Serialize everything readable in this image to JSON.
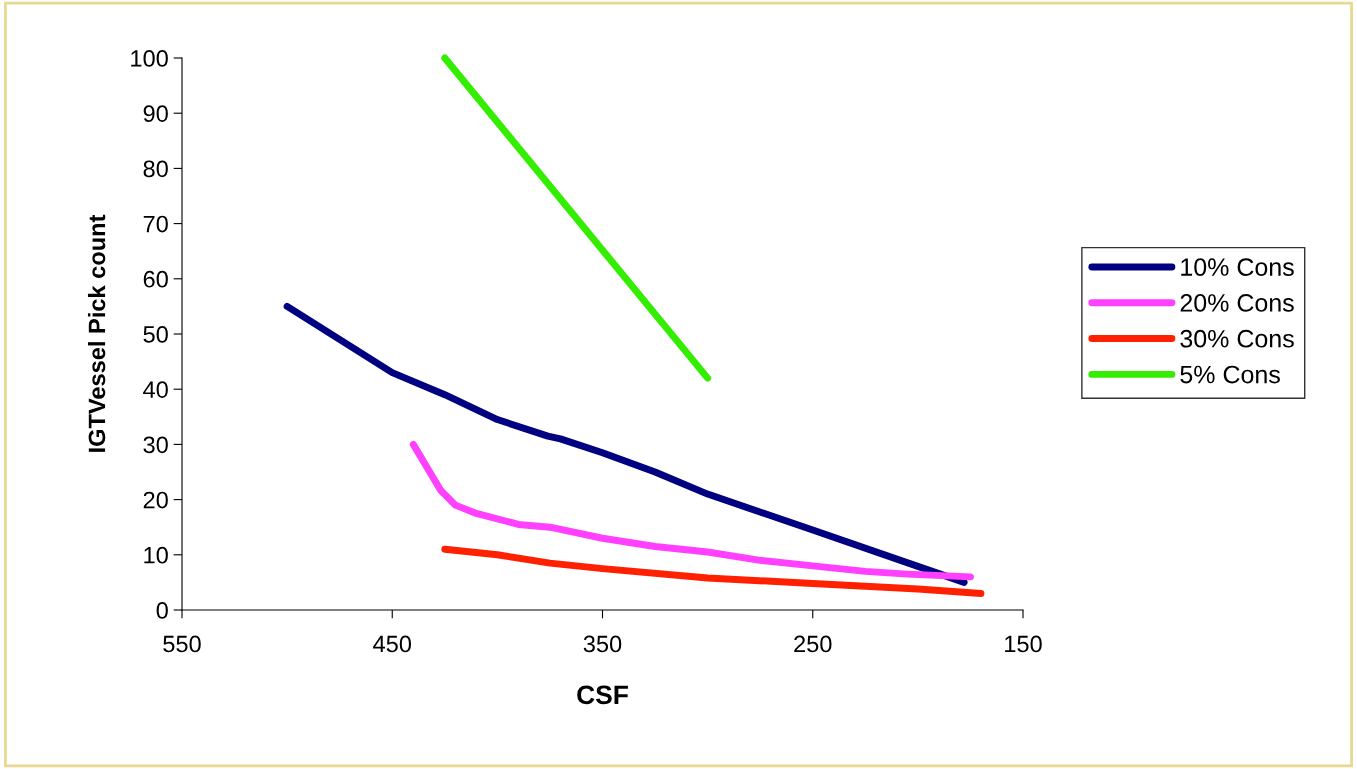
{
  "chart_data": {
    "type": "line",
    "xlabel": "CSF",
    "ylabel": "IGTVessel Pick count",
    "xlim": [
      550,
      150
    ],
    "xticks": [
      550,
      450,
      350,
      250,
      150
    ],
    "ylim": [
      0,
      100
    ],
    "yticks": [
      0,
      10,
      20,
      30,
      40,
      50,
      60,
      70,
      80,
      90,
      100
    ],
    "grid": false,
    "legend": "right",
    "marker": "none",
    "line_style": "solid",
    "series": [
      {
        "name": "10% Cons",
        "color": "#000080",
        "x": [
          500,
          450,
          425,
          400,
          376,
          370,
          350,
          325,
          300,
          250,
          178
        ],
        "values": [
          55,
          43,
          39,
          34.5,
          31.5,
          31,
          28.5,
          25,
          21,
          14.5,
          5
        ]
      },
      {
        "name": "20% Cons",
        "color": "#ff40ff",
        "x": [
          440,
          427,
          420,
          410,
          390,
          375,
          350,
          325,
          300,
          275,
          250,
          225,
          205,
          175
        ],
        "values": [
          30,
          21.7,
          19,
          17.5,
          15.5,
          15,
          13,
          11.5,
          10.5,
          9,
          8,
          7,
          6.5,
          6
        ]
      },
      {
        "name": "30% Cons",
        "color": "#ff2000",
        "x": [
          425,
          400,
          375,
          350,
          300,
          250,
          200,
          170
        ],
        "values": [
          11,
          10,
          8.5,
          7.5,
          5.8,
          4.8,
          3.8,
          3
        ]
      },
      {
        "name": "5% Cons",
        "color": "#33ee00",
        "x": [
          425,
          300
        ],
        "values": [
          100,
          42
        ]
      }
    ]
  }
}
